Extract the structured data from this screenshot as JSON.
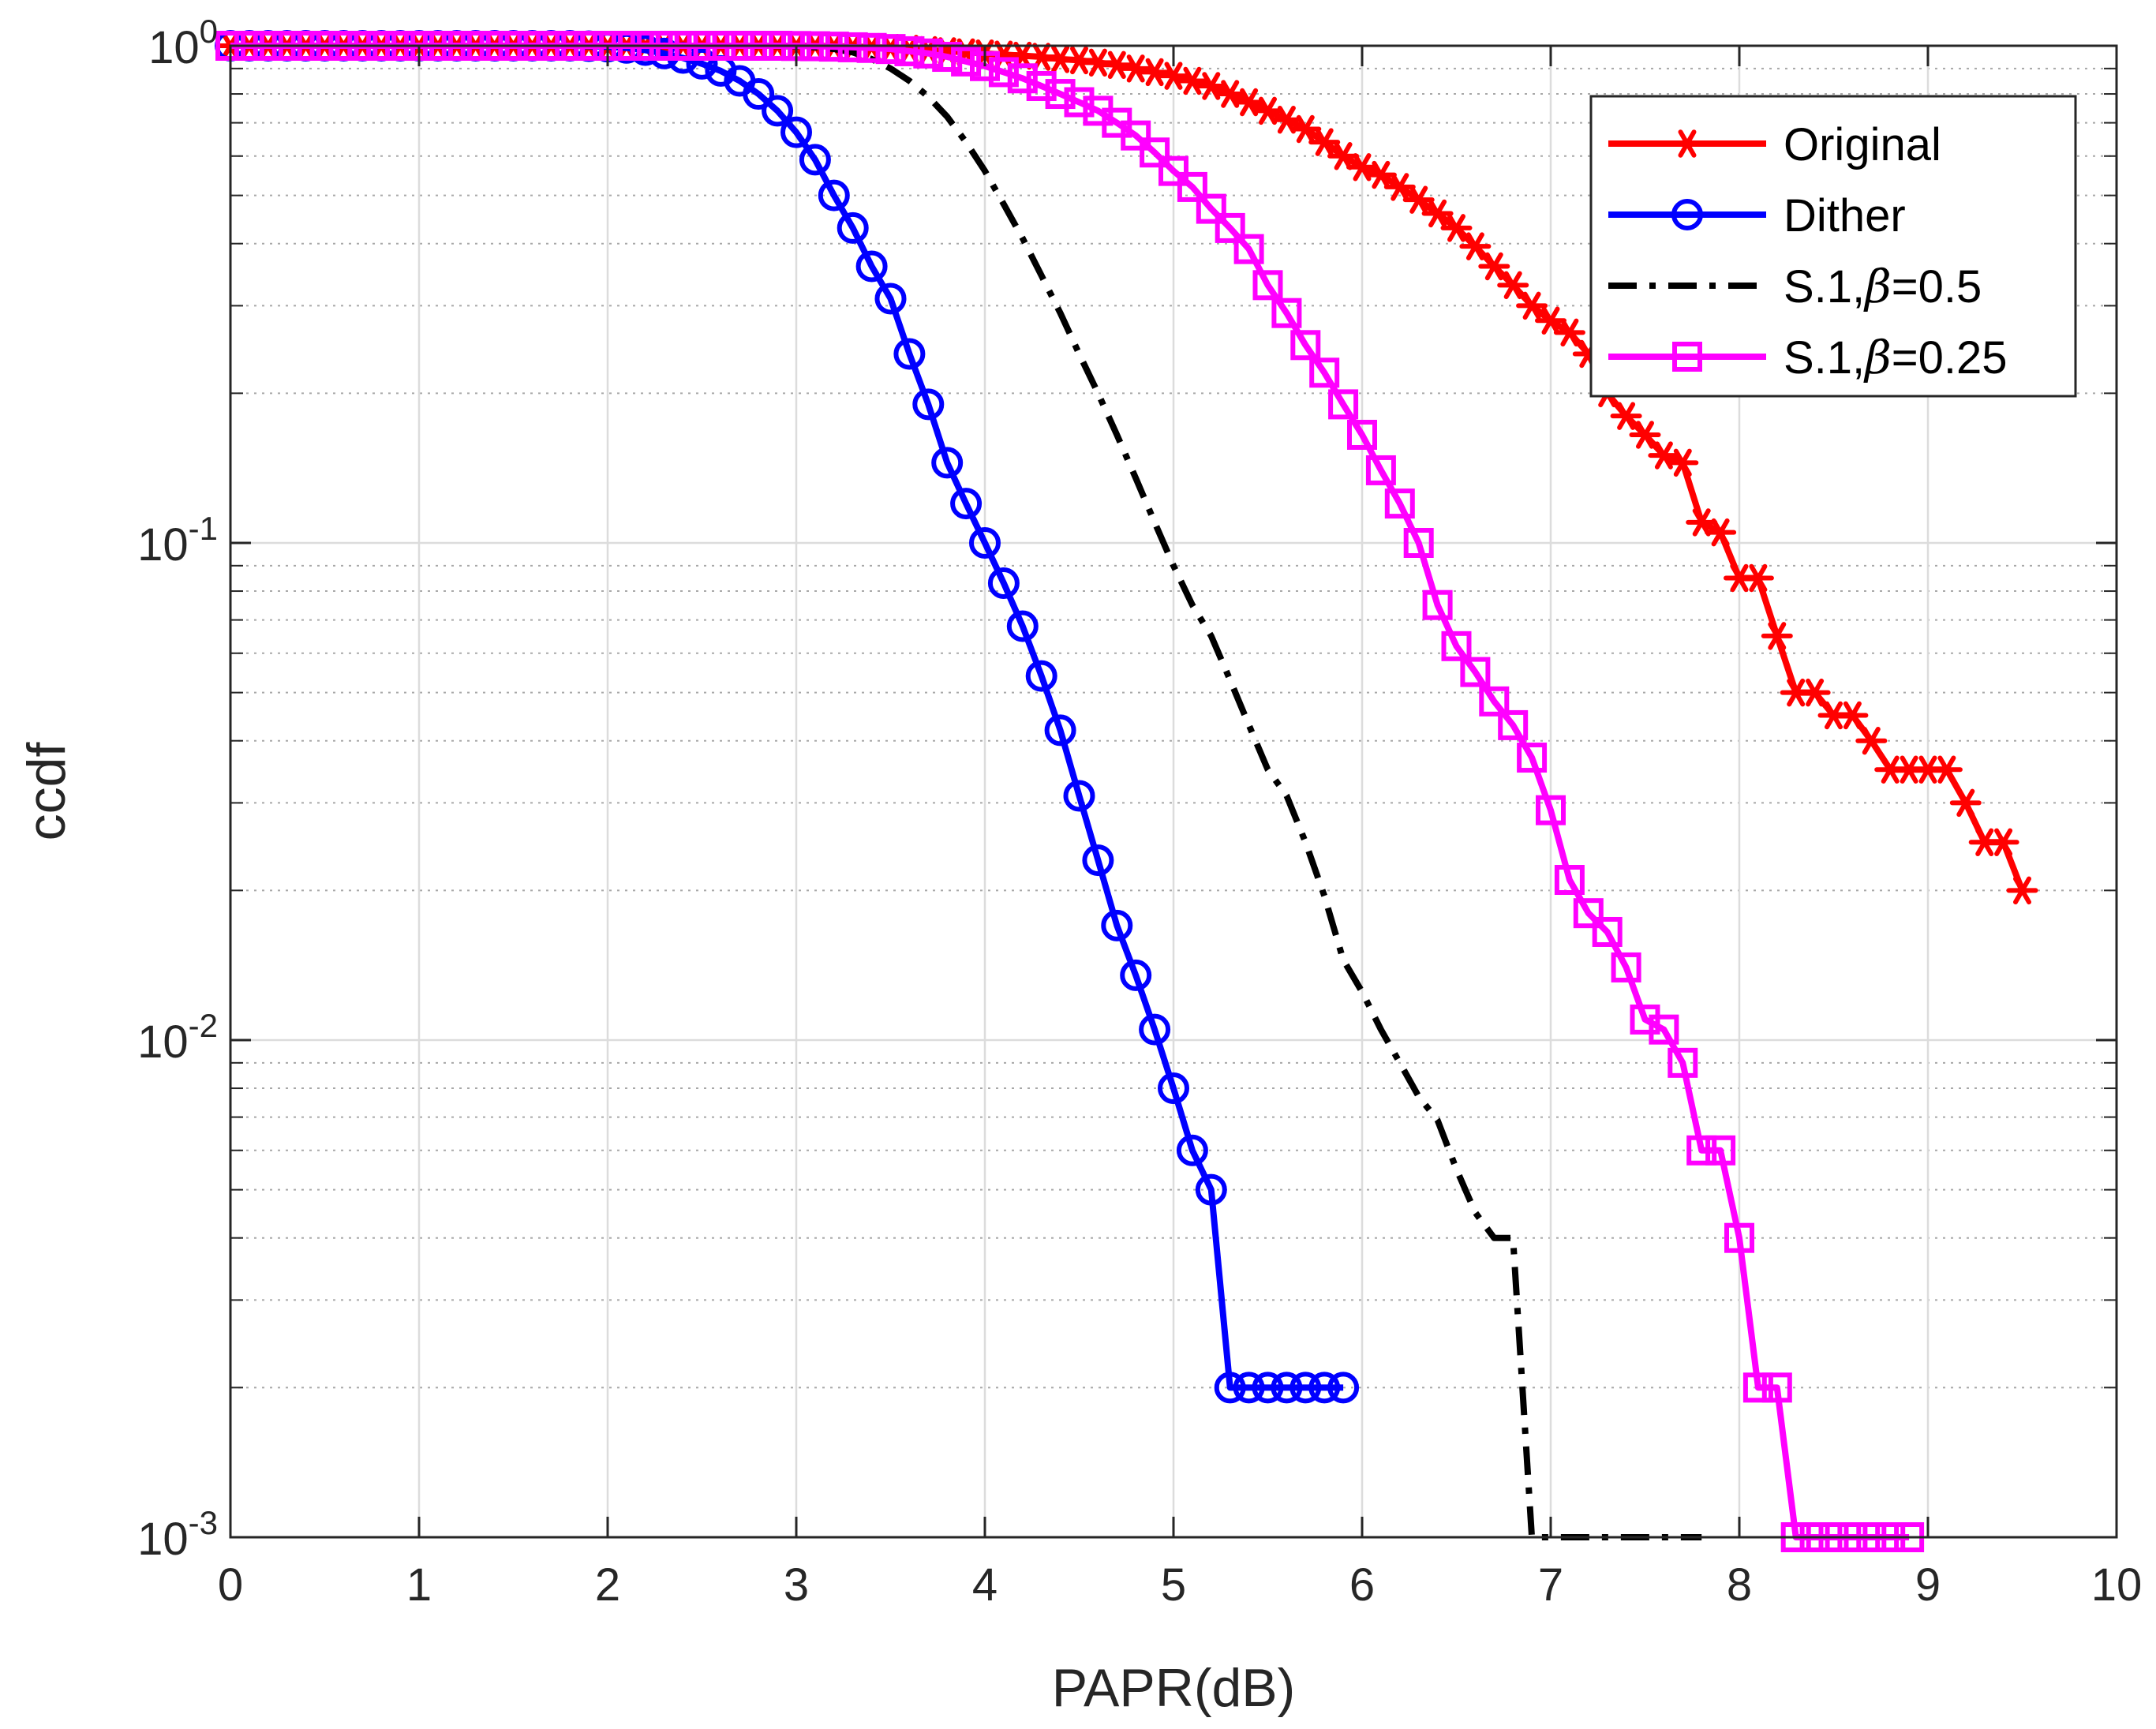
{
  "chart_data": {
    "type": "line",
    "title": "",
    "xlabel": "PAPR(dB)",
    "ylabel": "ccdf",
    "xlim": [
      0,
      10
    ],
    "ylim": [
      0.001,
      1
    ],
    "yscale": "log",
    "grid": true,
    "minor_grid": true,
    "legend_position": "top-right",
    "x_ticks": [
      {
        "value": 0,
        "label": "0"
      },
      {
        "value": 1,
        "label": "1"
      },
      {
        "value": 2,
        "label": "2"
      },
      {
        "value": 3,
        "label": "3"
      },
      {
        "value": 4,
        "label": "4"
      },
      {
        "value": 5,
        "label": "5"
      },
      {
        "value": 6,
        "label": "6"
      },
      {
        "value": 7,
        "label": "7"
      },
      {
        "value": 8,
        "label": "8"
      },
      {
        "value": 9,
        "label": "9"
      },
      {
        "value": 10,
        "label": "10"
      }
    ],
    "y_ticks": [
      {
        "value": 1,
        "base": "10",
        "exp": "0"
      },
      {
        "value": 0.1,
        "base": "10",
        "exp": "-1"
      },
      {
        "value": 0.01,
        "base": "10",
        "exp": "-2"
      },
      {
        "value": 0.001,
        "base": "10",
        "exp": "-3"
      }
    ],
    "series": [
      {
        "name": "Original",
        "legend_label": "Original",
        "color": "#ff0000",
        "marker": "asterisk",
        "line_style": "solid",
        "x": [
          0.0,
          0.1,
          0.2,
          0.3,
          0.4,
          0.5,
          0.6,
          0.7,
          0.8,
          0.9,
          1.0,
          1.1,
          1.2,
          1.3,
          1.4,
          1.5,
          1.6,
          1.7,
          1.8,
          1.9,
          2.0,
          2.1,
          2.2,
          2.3,
          2.4,
          2.5,
          2.6,
          2.7,
          2.8,
          2.9,
          3.0,
          3.1,
          3.2,
          3.3,
          3.4,
          3.5,
          3.6,
          3.7,
          3.8,
          3.9,
          4.0,
          4.1,
          4.2,
          4.3,
          4.4,
          4.5,
          4.6,
          4.7,
          4.8,
          4.9,
          5.0,
          5.1,
          5.2,
          5.3,
          5.4,
          5.5,
          5.6,
          5.7,
          5.8,
          5.9,
          6.0,
          6.1,
          6.2,
          6.3,
          6.4,
          6.5,
          6.6,
          6.7,
          6.8,
          6.9,
          7.0,
          7.1,
          7.2,
          7.3,
          7.4,
          7.5,
          7.6,
          7.7,
          7.8,
          7.9,
          8.0,
          8.1,
          8.2,
          8.3,
          8.4,
          8.5,
          8.6,
          8.7,
          8.8,
          8.9,
          9.0,
          9.1,
          9.2,
          9.3,
          9.4,
          9.5
        ],
        "y": [
          1,
          1,
          1,
          1,
          1,
          1,
          1,
          1,
          1,
          1,
          1,
          1,
          1,
          1,
          1,
          1,
          1,
          1,
          1,
          1,
          1,
          1,
          1,
          1,
          1,
          1,
          1,
          1,
          1,
          1,
          1,
          1,
          0.998,
          0.996,
          0.994,
          0.99,
          0.986,
          0.98,
          0.975,
          0.97,
          0.965,
          0.96,
          0.955,
          0.95,
          0.94,
          0.935,
          0.925,
          0.915,
          0.9,
          0.885,
          0.87,
          0.85,
          0.83,
          0.8,
          0.77,
          0.74,
          0.71,
          0.68,
          0.64,
          0.6,
          0.57,
          0.55,
          0.52,
          0.49,
          0.46,
          0.43,
          0.395,
          0.36,
          0.33,
          0.3,
          0.28,
          0.265,
          0.24,
          0.2,
          0.18,
          0.165,
          0.15,
          0.145,
          0.11,
          0.105,
          0.085,
          0.085,
          0.065,
          0.05,
          0.05,
          0.045,
          0.045,
          0.04,
          0.035,
          0.035,
          0.035,
          0.035,
          0.03,
          0.025,
          0.025,
          0.02
        ]
      },
      {
        "name": "Dither",
        "legend_label": "Dither",
        "color": "#0000ff",
        "marker": "circle",
        "line_style": "solid",
        "x": [
          0.0,
          0.1,
          0.2,
          0.3,
          0.4,
          0.5,
          0.6,
          0.7,
          0.8,
          0.9,
          1.0,
          1.1,
          1.2,
          1.3,
          1.4,
          1.5,
          1.6,
          1.7,
          1.8,
          1.9,
          2.0,
          2.1,
          2.2,
          2.3,
          2.4,
          2.5,
          2.6,
          2.7,
          2.8,
          2.9,
          3.0,
          3.1,
          3.2,
          3.3,
          3.4,
          3.5,
          3.6,
          3.7,
          3.8,
          3.9,
          4.0,
          4.1,
          4.2,
          4.3,
          4.4,
          4.5,
          4.6,
          4.7,
          4.8,
          4.9,
          5.0,
          5.1,
          5.2,
          5.3,
          5.4,
          5.5,
          5.6,
          5.7,
          5.8,
          5.9
        ],
        "y": [
          1,
          1,
          1,
          1,
          1,
          1,
          1,
          1,
          1,
          1,
          1,
          1,
          1,
          1,
          1,
          1,
          1,
          1,
          1,
          0.998,
          0.996,
          0.99,
          0.98,
          0.965,
          0.945,
          0.92,
          0.89,
          0.85,
          0.8,
          0.74,
          0.67,
          0.59,
          0.5,
          0.43,
          0.36,
          0.31,
          0.24,
          0.19,
          0.145,
          0.12,
          0.1,
          0.083,
          0.068,
          0.054,
          0.042,
          0.031,
          0.023,
          0.017,
          0.0135,
          0.0105,
          0.008,
          0.006,
          0.005,
          0.002,
          0.002,
          0.002,
          0.002,
          0.002,
          0.002,
          0.002
        ]
      },
      {
        "name": "S.1, beta=0.5",
        "legend_prefix": "S.1,",
        "legend_symbol": "β",
        "legend_suffix": "=0.5",
        "color": "#000000",
        "marker": "none",
        "line_style": "dashdot",
        "x": [
          0.0,
          0.5,
          1.0,
          1.5,
          2.0,
          2.3,
          2.6,
          2.9,
          3.0,
          3.1,
          3.2,
          3.3,
          3.4,
          3.5,
          3.6,
          3.7,
          3.8,
          3.9,
          4.0,
          4.1,
          4.2,
          4.3,
          4.4,
          4.5,
          4.6,
          4.7,
          4.8,
          4.9,
          5.0,
          5.1,
          5.2,
          5.3,
          5.4,
          5.5,
          5.6,
          5.7,
          5.8,
          5.9,
          6.0,
          6.1,
          6.2,
          6.3,
          6.4,
          6.5,
          6.6,
          6.7,
          6.8,
          6.9,
          7.0,
          7.3,
          7.6,
          7.8
        ],
        "y": [
          1,
          1,
          1,
          1,
          1,
          1,
          1,
          0.999,
          0.997,
          0.993,
          0.985,
          0.97,
          0.94,
          0.9,
          0.85,
          0.79,
          0.72,
          0.64,
          0.56,
          0.48,
          0.41,
          0.345,
          0.29,
          0.24,
          0.2,
          0.165,
          0.135,
          0.11,
          0.09,
          0.075,
          0.065,
          0.053,
          0.043,
          0.035,
          0.031,
          0.025,
          0.0195,
          0.0145,
          0.0125,
          0.0105,
          0.009,
          0.0077,
          0.0069,
          0.0055,
          0.0045,
          0.004,
          0.004,
          0.001,
          0.001,
          0.001,
          0.001,
          0.001
        ]
      },
      {
        "name": "S.1, beta=0.25",
        "legend_prefix": "S.1,",
        "legend_symbol": "β",
        "legend_suffix": "=0.25",
        "color": "#ff00ff",
        "marker": "square",
        "line_style": "solid",
        "x": [
          0.0,
          0.1,
          0.2,
          0.3,
          0.4,
          0.5,
          0.6,
          0.7,
          0.8,
          0.9,
          1.0,
          1.1,
          1.2,
          1.3,
          1.4,
          1.5,
          1.6,
          1.7,
          1.8,
          1.9,
          2.0,
          2.1,
          2.2,
          2.3,
          2.4,
          2.5,
          2.6,
          2.7,
          2.8,
          2.9,
          3.0,
          3.1,
          3.2,
          3.3,
          3.4,
          3.5,
          3.6,
          3.7,
          3.8,
          3.9,
          4.0,
          4.1,
          4.2,
          4.3,
          4.4,
          4.5,
          4.6,
          4.7,
          4.8,
          4.9,
          5.0,
          5.1,
          5.2,
          5.3,
          5.4,
          5.5,
          5.6,
          5.7,
          5.8,
          5.9,
          6.0,
          6.1,
          6.2,
          6.3,
          6.4,
          6.5,
          6.6,
          6.7,
          6.8,
          6.9,
          7.0,
          7.1,
          7.2,
          7.3,
          7.4,
          7.5,
          7.6,
          7.7,
          7.8,
          7.9,
          8.0,
          8.1,
          8.2,
          8.3,
          8.4,
          8.5,
          8.6,
          8.7,
          8.8,
          8.9
        ],
        "y": [
          1,
          1,
          1,
          1,
          1,
          1,
          1,
          1,
          1,
          1,
          1,
          1,
          1,
          1,
          1,
          1,
          1,
          1,
          1,
          1,
          1,
          1,
          1,
          1,
          1,
          1,
          1,
          1,
          1,
          1,
          0.999,
          0.998,
          0.996,
          0.993,
          0.99,
          0.985,
          0.975,
          0.965,
          0.95,
          0.93,
          0.91,
          0.885,
          0.86,
          0.83,
          0.8,
          0.77,
          0.74,
          0.7,
          0.66,
          0.61,
          0.56,
          0.52,
          0.47,
          0.43,
          0.39,
          0.33,
          0.29,
          0.25,
          0.22,
          0.19,
          0.165,
          0.14,
          0.12,
          0.1,
          0.075,
          0.062,
          0.055,
          0.048,
          0.043,
          0.037,
          0.029,
          0.021,
          0.018,
          0.0165,
          0.014,
          0.011,
          0.0105,
          0.009,
          0.006,
          0.006,
          0.004,
          0.002,
          0.002,
          0.001,
          0.001,
          0.001,
          0.001,
          0.001,
          0.001,
          0.001
        ]
      }
    ]
  }
}
